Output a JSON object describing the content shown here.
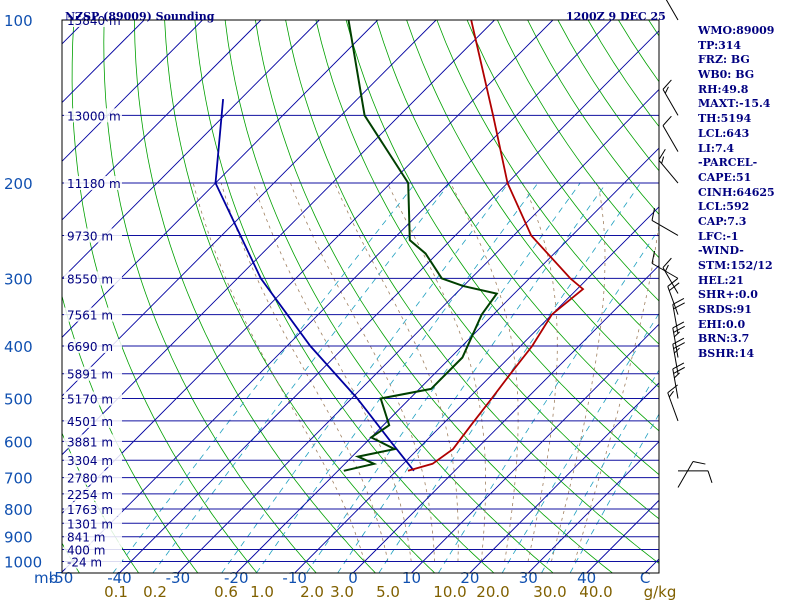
{
  "header": {
    "station": "NZSP (89009) Sounding",
    "valid_time": "1200Z  9 DEC 25"
  },
  "info_panel": [
    "WMO:89009",
    "TP:314",
    "FRZ: BG",
    "WB0: BG",
    "RH:49.8",
    "MAXT:-15.4",
    "TH:5194",
    "LCL:643",
    "LI:7.4",
    "-PARCEL-",
    "CAPE:51",
    "CINH:64625",
    "LCL:592",
    "CAP:7.3",
    "LFC:-1",
    "-WIND-",
    "STM:152/12",
    "HEL:21",
    "SHR+:0.0",
    "SRDS:91",
    "EHI:0.0",
    "BRN:3.7",
    "BSHR:14"
  ],
  "colors": {
    "isobar": "#1010a0",
    "isotherm": "#0000a0",
    "dry_adiabat": "#00a000",
    "moist_adiabat": "#a08060",
    "mixing_ratio": "#20a0c0",
    "temperature": "#b00000",
    "dewpoint": "#004000",
    "parcel": "#0000a0",
    "text": "#000080",
    "axis_text": "#1050b0",
    "mixing_text": "#806000"
  },
  "chart_data": {
    "type": "skew-t",
    "xlabel": "mb",
    "temperature_range_c": [
      -50,
      50
    ],
    "pressure_range_mb": [
      100,
      1050
    ],
    "pressure_ticks": [
      {
        "p": 100,
        "label": "100"
      },
      {
        "p": 200,
        "label": "200"
      },
      {
        "p": 300,
        "label": "300"
      },
      {
        "p": 400,
        "label": "400"
      },
      {
        "p": 500,
        "label": "500"
      },
      {
        "p": 600,
        "label": "600"
      },
      {
        "p": 700,
        "label": "700"
      },
      {
        "p": 800,
        "label": "800"
      },
      {
        "p": 900,
        "label": "900"
      },
      {
        "p": 1000,
        "label": "1000"
      }
    ],
    "temperature_ticks": [
      {
        "t": -50,
        "label": "-50"
      },
      {
        "t": -40,
        "label": "-40"
      },
      {
        "t": -30,
        "label": "-30"
      },
      {
        "t": -20,
        "label": "-20"
      },
      {
        "t": -10,
        "label": "-10"
      },
      {
        "t": 0,
        "label": "0"
      },
      {
        "t": 10,
        "label": "10"
      },
      {
        "t": 20,
        "label": "20"
      },
      {
        "t": 30,
        "label": "30"
      },
      {
        "t": 40,
        "label": "40"
      },
      {
        "t": 50,
        "label": "C"
      }
    ],
    "height_labels": [
      {
        "p": 100,
        "label": "15840 m"
      },
      {
        "p": 150,
        "label": "13000 m"
      },
      {
        "p": 200,
        "label": "11180 m"
      },
      {
        "p": 250,
        "label": "9730 m"
      },
      {
        "p": 300,
        "label": "8550 m"
      },
      {
        "p": 350,
        "label": "7561 m"
      },
      {
        "p": 400,
        "label": "6690 m"
      },
      {
        "p": 450,
        "label": "5891 m"
      },
      {
        "p": 500,
        "label": "5170 m"
      },
      {
        "p": 550,
        "label": "4501 m"
      },
      {
        "p": 600,
        "label": "3881 m"
      },
      {
        "p": 650,
        "label": "3304 m"
      },
      {
        "p": 700,
        "label": "2780 m"
      },
      {
        "p": 750,
        "label": "2254 m"
      },
      {
        "p": 800,
        "label": "1763 m"
      },
      {
        "p": 850,
        "label": "1301 m"
      },
      {
        "p": 900,
        "label": "841 m"
      },
      {
        "p": 950,
        "label": "400 m"
      },
      {
        "p": 1000,
        "label": "-24 m"
      }
    ],
    "mixing_ratio_labels": [
      "0.1",
      "0.2",
      "0.6",
      "1.0",
      "2.0",
      "3.0",
      "5.0",
      "10.0",
      "20.0",
      "30.0",
      "40.0",
      "g/kg"
    ],
    "mixing_ratio_values": [
      0.1,
      0.2,
      0.6,
      1.0,
      2.0,
      3.0,
      5.0,
      10.0,
      20.0,
      30.0,
      40.0
    ],
    "dry_adiabats_c_at_1000": [
      -60,
      -50,
      -40,
      -30,
      -20,
      -10,
      0,
      10,
      20,
      30,
      40,
      50,
      60,
      70,
      80,
      90,
      100,
      110,
      120,
      130,
      140,
      150,
      160,
      170,
      180,
      190,
      200
    ],
    "moist_adiabats_c": [
      0,
      4,
      8,
      12,
      16,
      20,
      24,
      28,
      32,
      36
    ],
    "temperature_profile": [
      {
        "p": 680,
        "t": -8
      },
      {
        "p": 660,
        "t": -5
      },
      {
        "p": 620,
        "t": -4
      },
      {
        "p": 560,
        "t": -5
      },
      {
        "p": 500,
        "t": -6
      },
      {
        "p": 450,
        "t": -7
      },
      {
        "p": 400,
        "t": -8
      },
      {
        "p": 350,
        "t": -10
      },
      {
        "p": 314,
        "t": -9
      },
      {
        "p": 300,
        "t": -13
      },
      {
        "p": 250,
        "t": -27
      },
      {
        "p": 200,
        "t": -40
      },
      {
        "p": 150,
        "t": -54
      },
      {
        "p": 100,
        "t": -74
      }
    ],
    "dewpoint_profile": [
      {
        "p": 680,
        "t": -19
      },
      {
        "p": 660,
        "t": -15
      },
      {
        "p": 640,
        "t": -19
      },
      {
        "p": 620,
        "t": -14
      },
      {
        "p": 590,
        "t": -20
      },
      {
        "p": 560,
        "t": -19
      },
      {
        "p": 500,
        "t": -25
      },
      {
        "p": 480,
        "t": -18
      },
      {
        "p": 420,
        "t": -18
      },
      {
        "p": 350,
        "t": -22
      },
      {
        "p": 320,
        "t": -23
      },
      {
        "p": 310,
        "t": -30
      },
      {
        "p": 300,
        "t": -35
      },
      {
        "p": 270,
        "t": -42
      },
      {
        "p": 255,
        "t": -47
      },
      {
        "p": 200,
        "t": -57
      },
      {
        "p": 150,
        "t": -76
      },
      {
        "p": 100,
        "t": -95
      }
    ],
    "parcel_profile": [
      {
        "p": 680,
        "t": -7
      },
      {
        "p": 600,
        "t": -16
      },
      {
        "p": 500,
        "t": -29
      },
      {
        "p": 400,
        "t": -46
      },
      {
        "p": 300,
        "t": -66
      },
      {
        "p": 200,
        "t": -90
      },
      {
        "p": 140,
        "t": -103
      }
    ],
    "wind_barbs": [
      {
        "p": 100,
        "dir": 330,
        "spd": 20
      },
      {
        "p": 150,
        "dir": 330,
        "spd": 15
      },
      {
        "p": 175,
        "dir": 330,
        "spd": 10
      },
      {
        "p": 200,
        "dir": 320,
        "spd": 15
      },
      {
        "p": 250,
        "dir": 300,
        "spd": 10
      },
      {
        "p": 300,
        "dir": 300,
        "spd": 10
      },
      {
        "p": 320,
        "dir": 330,
        "spd": 15
      },
      {
        "p": 350,
        "dir": 340,
        "spd": 20
      },
      {
        "p": 380,
        "dir": 350,
        "spd": 20
      },
      {
        "p": 420,
        "dir": 350,
        "spd": 25
      },
      {
        "p": 450,
        "dir": 350,
        "spd": 25
      },
      {
        "p": 500,
        "dir": 350,
        "spd": 25
      },
      {
        "p": 550,
        "dir": 340,
        "spd": 15
      },
      {
        "p": 680,
        "dir": 90,
        "spd": 10
      },
      {
        "p": 730,
        "dir": 30,
        "spd": 10
      }
    ]
  }
}
